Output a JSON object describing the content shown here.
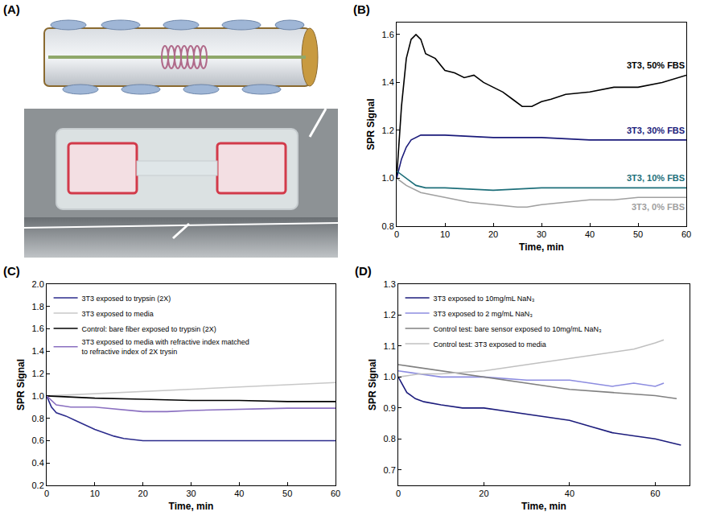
{
  "figure_a": {
    "label": "(A)"
  },
  "chart_data": [
    {
      "label": "(B)",
      "type": "line",
      "x_title": "Time, min",
      "y_title": "SPR Signal",
      "xlim": [
        0,
        60
      ],
      "xticks": [
        0,
        10,
        20,
        30,
        40,
        50,
        60
      ],
      "ylim": [
        0.8,
        1.65
      ],
      "yticks": [
        0.8,
        {
          "value": 1,
          "label": "1.0"
        },
        1.2,
        1.4,
        1.6
      ],
      "grid": false,
      "series": [
        {
          "name": "3T3, 50% FBS",
          "color": "#000000",
          "x": [
            0,
            1,
            2,
            3,
            4,
            5,
            6,
            8,
            10,
            12,
            14,
            16,
            18,
            20,
            22,
            24,
            26,
            28,
            30,
            32,
            35,
            40,
            45,
            50,
            55,
            60
          ],
          "values": [
            1.0,
            1.3,
            1.5,
            1.58,
            1.6,
            1.58,
            1.52,
            1.5,
            1.45,
            1.44,
            1.42,
            1.43,
            1.4,
            1.38,
            1.36,
            1.33,
            1.3,
            1.3,
            1.32,
            1.33,
            1.35,
            1.36,
            1.38,
            1.38,
            1.4,
            1.43
          ]
        },
        {
          "name": "3T3, 30% FBS",
          "color": "#1a1a7a",
          "x": [
            0,
            1,
            2,
            3,
            5,
            10,
            20,
            30,
            40,
            50,
            60
          ],
          "values": [
            1.0,
            1.08,
            1.13,
            1.16,
            1.18,
            1.18,
            1.17,
            1.17,
            1.16,
            1.16,
            1.16
          ]
        },
        {
          "name": "3T3, 10% FBS",
          "color": "#1e6f7a",
          "x": [
            0,
            2,
            4,
            6,
            10,
            20,
            30,
            40,
            50,
            60
          ],
          "values": [
            1.03,
            1.0,
            0.97,
            0.96,
            0.96,
            0.95,
            0.96,
            0.96,
            0.96,
            0.96
          ]
        },
        {
          "name": "3T3, 0% FBS",
          "color": "#a0a0a0",
          "x": [
            0,
            2,
            5,
            10,
            15,
            20,
            25,
            27,
            30,
            35,
            40,
            45,
            50,
            55,
            60
          ],
          "values": [
            1.0,
            0.97,
            0.94,
            0.92,
            0.9,
            0.89,
            0.88,
            0.88,
            0.89,
            0.9,
            0.91,
            0.91,
            0.92,
            0.92,
            0.92
          ]
        }
      ]
    },
    {
      "label": "(C)",
      "type": "line",
      "x_title": "Time, min",
      "y_title": "SPR Signal",
      "xlim": [
        0,
        60
      ],
      "xticks": [
        0,
        10,
        20,
        30,
        40,
        50,
        60
      ],
      "ylim": [
        0.2,
        2.0
      ],
      "yticks": [
        0.2,
        0.4,
        0.6,
        0.8,
        {
          "value": 1,
          "label": "1.0"
        },
        1.2,
        1.4,
        1.6,
        1.8,
        {
          "value": 2,
          "label": "2.0"
        }
      ],
      "grid": false,
      "legend": "upper left",
      "series": [
        {
          "name": "3T3 exposed to trypsin (2X)",
          "color": "#2b2b8c",
          "x": [
            0,
            1,
            2,
            4,
            6,
            8,
            10,
            12,
            14,
            16,
            18,
            20,
            25,
            30,
            40,
            50,
            60
          ],
          "values": [
            1.0,
            0.9,
            0.85,
            0.82,
            0.78,
            0.74,
            0.7,
            0.67,
            0.64,
            0.62,
            0.61,
            0.6,
            0.6,
            0.6,
            0.6,
            0.6,
            0.6
          ]
        },
        {
          "name": "3T3 exposed to media",
          "color": "#c8c8c8",
          "x": [
            0,
            10,
            20,
            30,
            40,
            50,
            60
          ],
          "values": [
            1.0,
            1.02,
            1.04,
            1.06,
            1.08,
            1.1,
            1.12
          ]
        },
        {
          "name": "Control: bare fiber exposed to trypsin (2X)",
          "color": "#000000",
          "x": [
            0,
            10,
            20,
            30,
            40,
            50,
            60
          ],
          "values": [
            1.0,
            0.98,
            0.97,
            0.96,
            0.96,
            0.95,
            0.95
          ]
        },
        {
          "name": "3T3 exposed to media with refractive index matched to refractive index of 2X trysin",
          "color": "#8a6fc0",
          "x": [
            0,
            2,
            5,
            10,
            20,
            25,
            30,
            40,
            50,
            60
          ],
          "values": [
            1.0,
            0.92,
            0.9,
            0.9,
            0.86,
            0.86,
            0.87,
            0.88,
            0.89,
            0.89
          ]
        }
      ]
    },
    {
      "label": "(D)",
      "type": "line",
      "x_title": "Time, min",
      "y_title": "SPR Signal",
      "xlim": [
        0,
        68
      ],
      "xticks": [
        0,
        20,
        40,
        60
      ],
      "ylim": [
        0.65,
        1.3
      ],
      "yticks": [
        0.7,
        0.8,
        0.9,
        {
          "value": 1,
          "label": "1.0"
        },
        1.1,
        1.2,
        1.3
      ],
      "grid": false,
      "legend": "upper left",
      "series": [
        {
          "name": "3T3 exposed to 10mg/mL NaN₃",
          "color": "#1c1c7c",
          "x": [
            0,
            2,
            4,
            6,
            10,
            15,
            20,
            25,
            30,
            35,
            40,
            45,
            50,
            55,
            60,
            66
          ],
          "values": [
            1.0,
            0.95,
            0.93,
            0.92,
            0.91,
            0.9,
            0.9,
            0.89,
            0.88,
            0.87,
            0.86,
            0.84,
            0.82,
            0.81,
            0.8,
            0.78
          ]
        },
        {
          "name": "3T3 exposed to 2 mg/mL NaN₃",
          "color": "#8c8ce0",
          "x": [
            0,
            5,
            10,
            20,
            30,
            40,
            45,
            50,
            55,
            60,
            62
          ],
          "values": [
            1.02,
            1.01,
            1.0,
            1.0,
            0.99,
            0.99,
            0.98,
            0.97,
            0.98,
            0.97,
            0.98
          ]
        },
        {
          "name": "Control test: bare sensor exposed to 10mg/mL NaN₃",
          "color": "#808080",
          "x": [
            0,
            5,
            10,
            20,
            30,
            40,
            50,
            60,
            65
          ],
          "values": [
            1.04,
            1.03,
            1.02,
            1.0,
            0.98,
            0.96,
            0.95,
            0.94,
            0.93
          ]
        },
        {
          "name": "Control test: 3T3 exposed to media",
          "color": "#c0c0c0",
          "x": [
            0,
            5,
            10,
            20,
            30,
            40,
            50,
            55,
            60,
            62
          ],
          "values": [
            1.0,
            1.01,
            1.01,
            1.02,
            1.04,
            1.06,
            1.08,
            1.09,
            1.11,
            1.12
          ]
        }
      ]
    }
  ]
}
